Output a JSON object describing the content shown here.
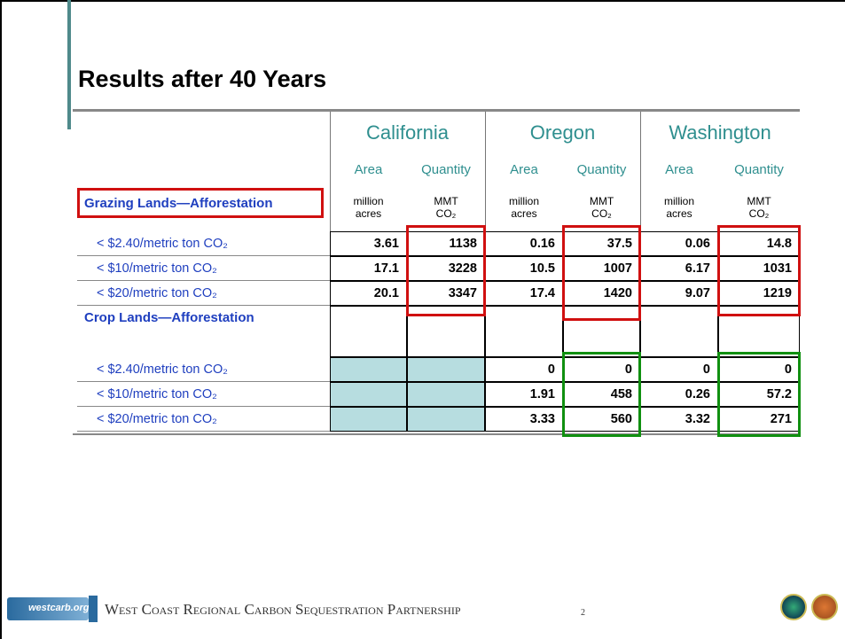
{
  "title": "Results after 40 Years",
  "table": {
    "states": [
      {
        "name": "California",
        "columns": [
          {
            "label": "Area",
            "unit": "million acres"
          },
          {
            "label": "Quantity",
            "unit": "MMT CO₂"
          }
        ]
      },
      {
        "name": "Oregon",
        "columns": [
          {
            "label": "Area",
            "unit": "million acres"
          },
          {
            "label": "Quantity",
            "unit": "MMT CO₂"
          }
        ]
      },
      {
        "name": "Washington",
        "columns": [
          {
            "label": "Area",
            "unit": "million acres"
          },
          {
            "label": "Quantity",
            "unit": "MMT CO₂"
          }
        ]
      }
    ],
    "sections": [
      {
        "title": "Grazing Lands—Afforestation",
        "rows": [
          {
            "label": "< $2.40/metric ton CO₂",
            "values": [
              3.61,
              1138,
              0.16,
              37.5,
              0.06,
              14.8
            ]
          },
          {
            "label": "< $10/metric ton CO₂",
            "values": [
              17.1,
              3228,
              10.5,
              1007,
              6.17,
              1031
            ]
          },
          {
            "label": "< $20/metric ton CO₂",
            "values": [
              20.1,
              3347,
              17.4,
              1420,
              9.07,
              1219
            ]
          }
        ]
      },
      {
        "title": "Crop Lands—Afforestation",
        "rows": [
          {
            "label": "< $2.40/metric ton CO₂",
            "values": [
              null,
              null,
              0,
              0,
              0,
              0
            ]
          },
          {
            "label": "< $10/metric ton CO₂",
            "values": [
              null,
              null,
              1.91,
              458,
              0.26,
              57.2
            ]
          },
          {
            "label": "< $20/metric ton CO₂",
            "values": [
              null,
              null,
              3.33,
              560,
              3.32,
              271
            ]
          }
        ]
      }
    ]
  },
  "footer": {
    "logo": "westcarb.org",
    "text": "West Coast Regional Carbon Sequestration Partnership",
    "page": "2"
  }
}
